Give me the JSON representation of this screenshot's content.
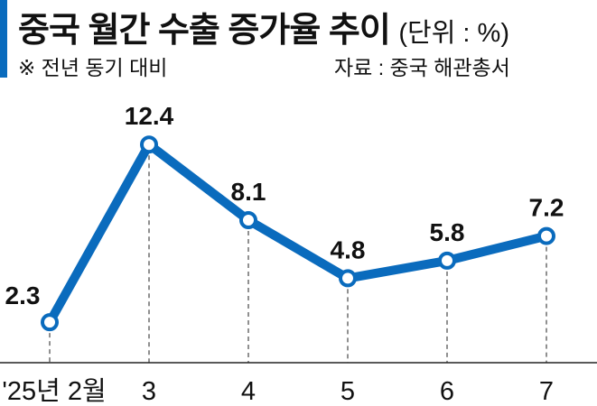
{
  "chart_data": {
    "type": "line",
    "title": "중국 월간 수출 증가율 추이",
    "unit": "(단위 : %)",
    "note": "※ 전년 동기 대비",
    "source": "자료 : 중국 해관총서",
    "categories": [
      "'25년 2월",
      "3",
      "4",
      "5",
      "6",
      "7"
    ],
    "values": [
      2.3,
      12.4,
      8.1,
      4.8,
      5.8,
      7.2
    ],
    "labels": [
      "2.3",
      "12.4",
      "8.1",
      "4.8",
      "5.8",
      "7.2"
    ],
    "xlabel": "",
    "ylabel": "",
    "ylim": [
      0,
      14
    ],
    "grid": false,
    "color": "#0a6bbd"
  }
}
